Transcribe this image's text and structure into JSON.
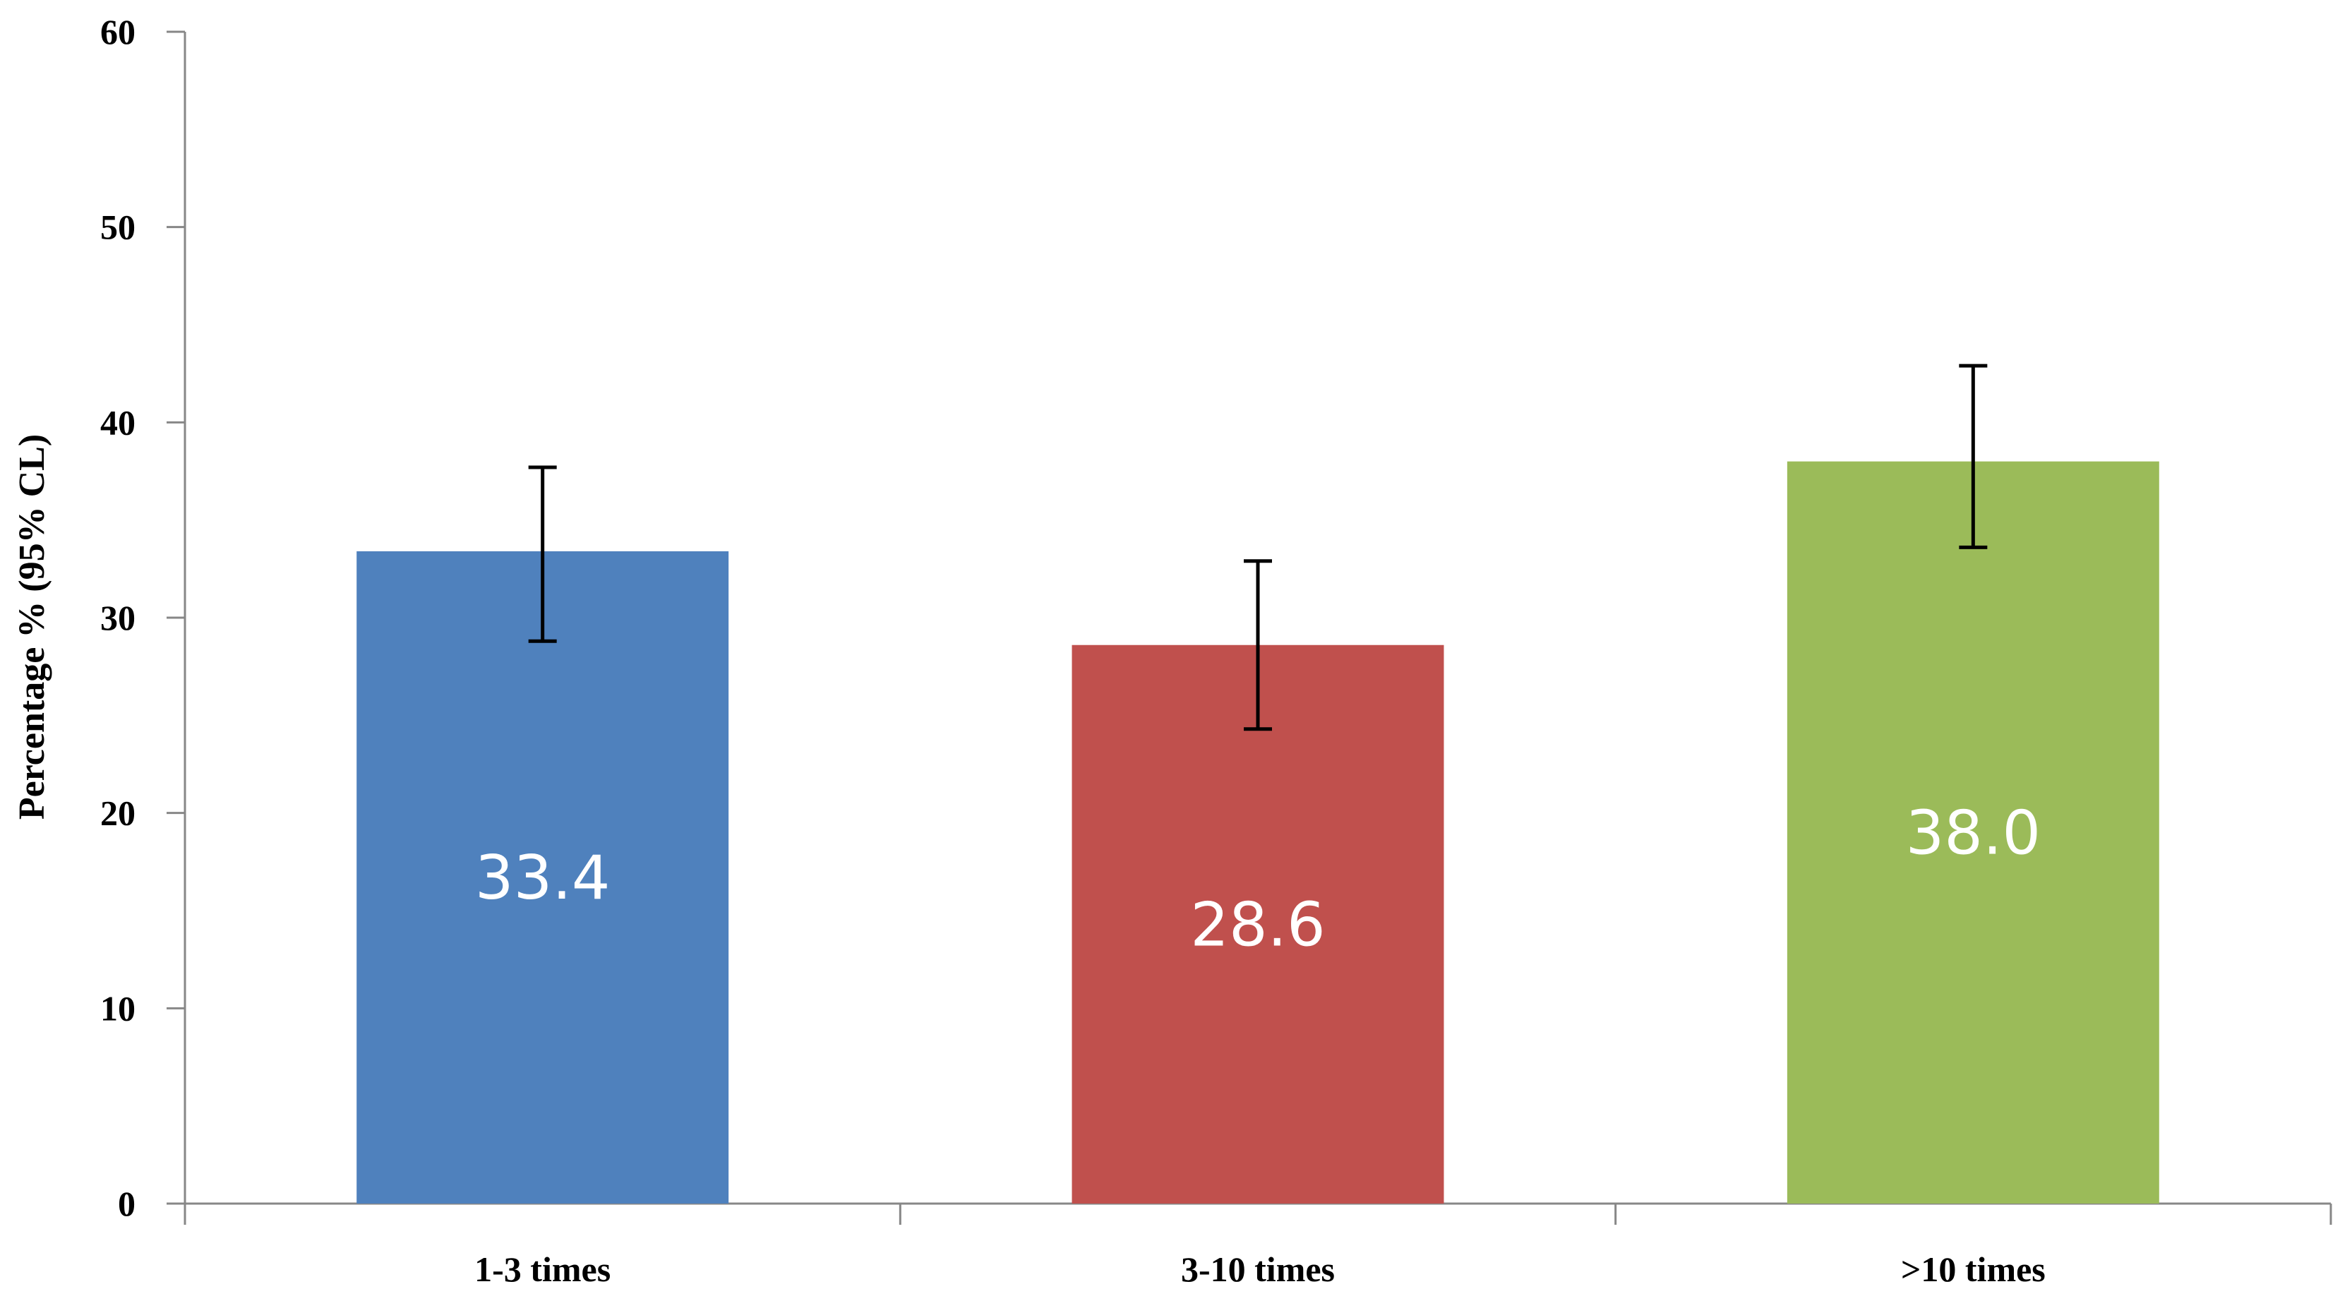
{
  "chart_data": {
    "type": "bar",
    "title": "",
    "xlabel": "",
    "ylabel": "Percentage % (95% CL)",
    "ylim": [
      0,
      60
    ],
    "y_ticks": [
      "0",
      "10",
      "20",
      "30",
      "40",
      "50",
      "60"
    ],
    "categories": [
      "1-3 times",
      "3-10 times",
      ">10 times"
    ],
    "values": [
      33.4,
      28.6,
      38.0
    ],
    "value_labels": [
      "33.4",
      "28.6",
      "38.0"
    ],
    "error_bars": [
      {
        "lower": 28.8,
        "upper": 37.7
      },
      {
        "lower": 24.3,
        "upper": 32.9
      },
      {
        "lower": 33.6,
        "upper": 42.9
      }
    ],
    "colors": [
      "#4F81BD",
      "#C0504D",
      "#9BBB59"
    ],
    "grid": false,
    "legend": "none"
  }
}
